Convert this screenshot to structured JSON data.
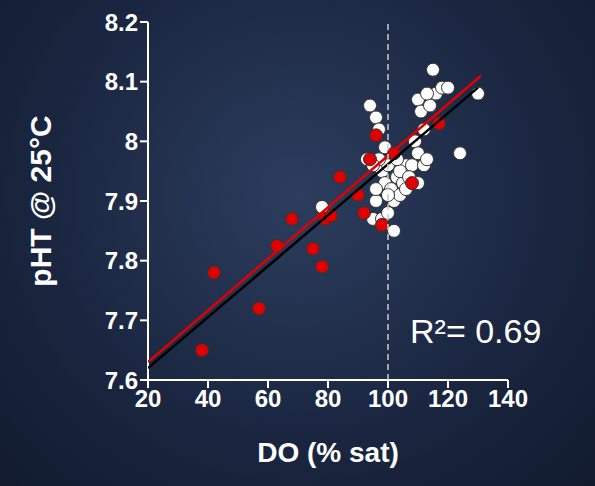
{
  "chart_data": {
    "type": "scatter",
    "x_label": "DO (% sat)",
    "y_label": "pHT @ 25°C",
    "annotation": "R²= 0.69",
    "xlim": [
      20,
      140
    ],
    "xticks": [
      20,
      40,
      60,
      80,
      100,
      120,
      140
    ],
    "ylim": [
      7.6,
      8.2
    ],
    "yticks": [
      7.6,
      7.7,
      7.8,
      7.9,
      8,
      8.1,
      8.2
    ],
    "grid": false,
    "series": [
      {
        "type": "scatter",
        "color": "#ffffff",
        "marker": "circle",
        "x": [
          78,
          93,
          94,
          95,
          96,
          96,
          97,
          98,
          98,
          99,
          100,
          100,
          101,
          102,
          102,
          103,
          104,
          105,
          106,
          106,
          108,
          109,
          110,
          110,
          111,
          112,
          112,
          113,
          114,
          115,
          116,
          118,
          120,
          124,
          130,
          96,
          97,
          100,
          104,
          107,
          110,
          113,
          95,
          99,
          103
        ],
        "values": [
          7.89,
          7.97,
          8.06,
          7.87,
          8.04,
          7.9,
          8.02,
          7.95,
          7.87,
          7.93,
          7.96,
          7.88,
          7.92,
          7.9,
          7.85,
          7.94,
          7.91,
          7.93,
          7.96,
          7.92,
          7.96,
          8.0,
          7.98,
          8.07,
          8.05,
          7.96,
          8.02,
          7.97,
          8.06,
          8.12,
          8.08,
          8.09,
          8.09,
          7.98,
          8.08,
          7.92,
          7.97,
          7.91,
          7.95,
          7.94,
          7.93,
          8.08,
          7.96,
          7.99,
          7.97
        ]
      },
      {
        "type": "scatter",
        "color": "#e00000",
        "marker": "circle",
        "x": [
          38,
          42,
          57,
          63,
          68,
          75,
          78,
          79,
          81,
          84,
          90,
          92,
          94,
          96,
          98,
          102,
          108,
          117
        ],
        "values": [
          7.65,
          7.78,
          7.72,
          7.825,
          7.87,
          7.82,
          7.79,
          7.87,
          7.875,
          7.94,
          7.91,
          7.88,
          7.97,
          8.01,
          7.86,
          7.98,
          7.93,
          8.03
        ]
      },
      {
        "type": "line",
        "color": "#000000",
        "line_style": "solid",
        "x": [
          20,
          130
        ],
        "values": [
          7.62,
          8.09
        ]
      },
      {
        "type": "line",
        "color": "#e00000",
        "line_style": "solid",
        "x": [
          20,
          131
        ],
        "values": [
          7.63,
          8.11
        ]
      },
      {
        "type": "line",
        "color": "#cccccc",
        "line_style": "dashed",
        "x": [
          100,
          100
        ],
        "values": [
          7.6,
          8.2
        ]
      }
    ]
  }
}
